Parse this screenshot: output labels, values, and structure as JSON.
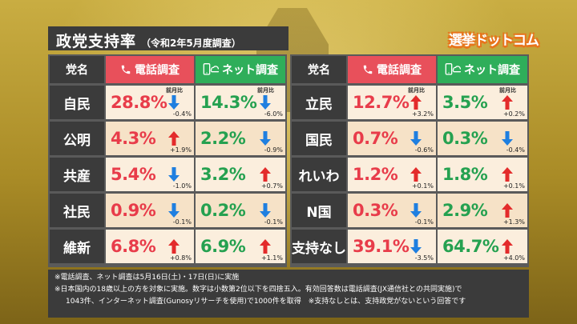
{
  "title": "政党支持率",
  "subtitle": "（令和2年5月度調査）",
  "logo": "選挙ドットコム",
  "headers": {
    "party": "党名",
    "tel": "電話調査",
    "net": "ネット調査",
    "mom": "前月比"
  },
  "colors": {
    "tel_header": "#e8505b",
    "net_header": "#2fae5a",
    "up_arrow": "#e32b2b",
    "down_arrow": "#1f7fe0"
  },
  "left": [
    {
      "party": "自民",
      "tel": "28.8%",
      "tel_chg": "-0.4%",
      "tel_dir": "down",
      "net": "14.3%",
      "net_chg": "-6.0%",
      "net_dir": "down"
    },
    {
      "party": "公明",
      "tel": "4.3%",
      "tel_chg": "+1.9%",
      "tel_dir": "up",
      "net": "2.2%",
      "net_chg": "-0.9%",
      "net_dir": "down"
    },
    {
      "party": "共産",
      "tel": "5.4%",
      "tel_chg": "-1.0%",
      "tel_dir": "down",
      "net": "3.2%",
      "net_chg": "+0.7%",
      "net_dir": "up"
    },
    {
      "party": "社民",
      "tel": "0.9%",
      "tel_chg": "-0.1%",
      "tel_dir": "down",
      "net": "0.2%",
      "net_chg": "-0.1%",
      "net_dir": "down"
    },
    {
      "party": "維新",
      "tel": "6.8%",
      "tel_chg": "+0.8%",
      "tel_dir": "up",
      "net": "6.9%",
      "net_chg": "+1.1%",
      "net_dir": "up"
    }
  ],
  "right": [
    {
      "party": "立民",
      "tel": "12.7%",
      "tel_chg": "+3.2%",
      "tel_dir": "up",
      "net": "3.5%",
      "net_chg": "+0.2%",
      "net_dir": "up"
    },
    {
      "party": "国民",
      "tel": "0.7%",
      "tel_chg": "-0.6%",
      "tel_dir": "down",
      "net": "0.3%",
      "net_chg": "-0.4%",
      "net_dir": "down"
    },
    {
      "party": "れいわ",
      "tel": "1.2%",
      "tel_chg": "+0.1%",
      "tel_dir": "up",
      "net": "1.8%",
      "net_chg": "+0.1%",
      "net_dir": "up"
    },
    {
      "party": "N国",
      "tel": "0.3%",
      "tel_chg": "-0.1%",
      "tel_dir": "down",
      "net": "2.9%",
      "net_chg": "+1.3%",
      "net_dir": "up"
    },
    {
      "party": "支持なし",
      "tel": "39.1%",
      "tel_chg": "-3.5%",
      "tel_dir": "down",
      "net": "64.7%",
      "net_chg": "+4.0%",
      "net_dir": "up"
    }
  ],
  "notes": [
    "※電話調査、ネット調査は5月16日(土)・17日(日)に実施",
    "※日本国内の18歳以上の方を対象に実施。数字は小数第2位以下を四捨五入。有効回答数は電話調査(JX通信社との共同実施)で",
    "1043件、インターネット調査(Gunosyリサーチを使用)で1000件を取得　※支持なしとは、支持政党がないという回答です"
  ]
}
